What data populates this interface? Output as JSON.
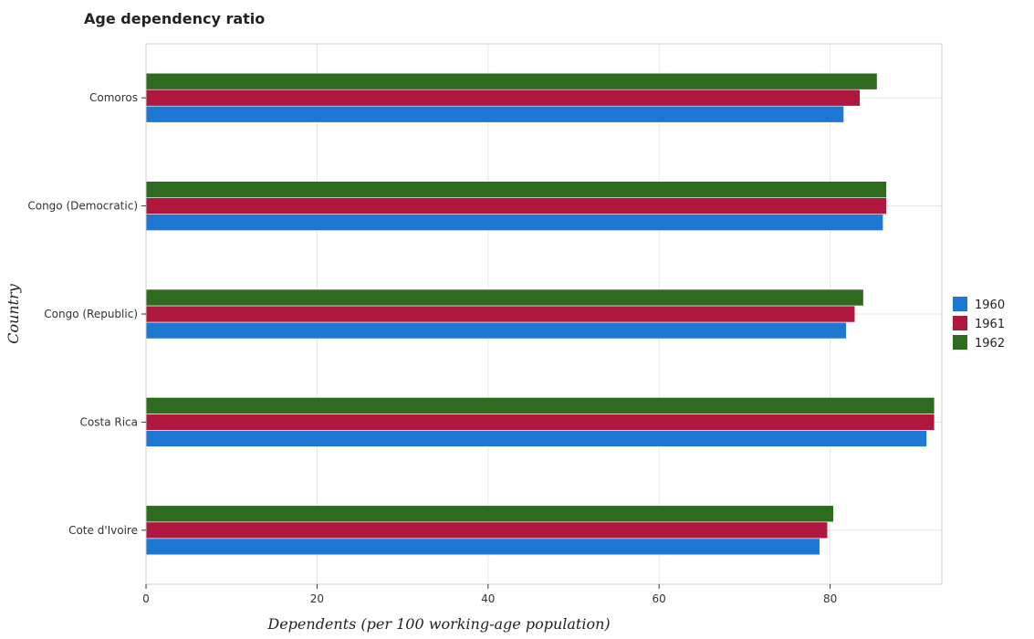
{
  "chart_data": {
    "type": "bar",
    "orientation": "horizontal",
    "title": "Age dependency ratio",
    "xlabel": "Dependents (per 100 working-age population)",
    "ylabel": "Country",
    "categories": [
      "Comoros",
      "Congo (Democratic)",
      "Congo (Republic)",
      "Costa Rica",
      "Cote d'Ivoire"
    ],
    "series": [
      {
        "name": "1960",
        "color": "#1f77d4",
        "values": [
          81.6,
          86.2,
          81.9,
          91.3,
          78.8
        ]
      },
      {
        "name": "1961",
        "color": "#b0173f",
        "values": [
          83.5,
          86.6,
          82.9,
          92.2,
          79.7
        ]
      },
      {
        "name": "1962",
        "color": "#2e6b1e",
        "values": [
          85.5,
          86.6,
          83.9,
          92.2,
          80.4
        ]
      }
    ],
    "xlim": [
      0,
      97
    ],
    "xticks": [
      0,
      20,
      40,
      60,
      80
    ],
    "grid": true,
    "legend_position": "right"
  }
}
